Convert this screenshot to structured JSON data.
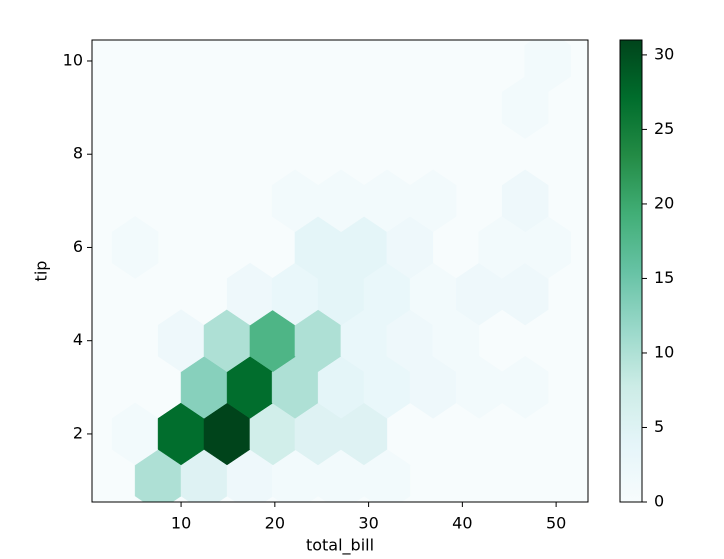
{
  "chart_data": {
    "type": "hexbin",
    "x_label": "total_bill",
    "y_label": "tip",
    "x": [
      7.55,
      12.45,
      17.36,
      22.16,
      27.07,
      31.97,
      5.1,
      10.0,
      14.9,
      19.8,
      24.6,
      29.5,
      12.45,
      17.36,
      22.16,
      27.07,
      31.97,
      36.88,
      41.79,
      46.7,
      10.0,
      14.9,
      19.8,
      24.6,
      29.5,
      34.4,
      39.3,
      17.36,
      22.16,
      27.07,
      31.97,
      36.88,
      41.79,
      46.7,
      5.1,
      24.6,
      29.5,
      34.4,
      44.2,
      49.1,
      22.16,
      27.07,
      31.97,
      36.88,
      46.7,
      46.7,
      49.1
    ],
    "y": [
      1,
      1,
      1,
      1,
      1,
      1,
      2,
      2,
      2,
      2,
      2,
      2,
      3,
      3,
      3,
      3,
      3,
      3,
      3,
      3,
      4,
      4,
      4,
      4,
      4,
      4,
      4,
      5,
      5,
      5,
      5,
      5,
      5,
      5,
      6,
      6,
      6,
      6,
      6,
      6,
      7,
      7,
      7,
      7,
      7,
      9,
      10
    ],
    "values": [
      10,
      5,
      2,
      1,
      1,
      1,
      1,
      27,
      31,
      7,
      5,
      5,
      13,
      27,
      10,
      4,
      3,
      2,
      1,
      1,
      2,
      10,
      18,
      10,
      3,
      2,
      1,
      2,
      3,
      4,
      3,
      1,
      2,
      2,
      1,
      4,
      4,
      2,
      1,
      1,
      1,
      1,
      1,
      1,
      2,
      1,
      1
    ],
    "xlim": [
      0.5,
      53.4
    ],
    "ylim": [
      0.54,
      10.45
    ],
    "xticks": [
      10,
      20,
      30,
      40,
      50
    ],
    "yticks": [
      2,
      4,
      6,
      8,
      10
    ],
    "colormap": "BuGn",
    "clim": [
      0,
      31
    ],
    "cbar_ticks": [
      0,
      5,
      10,
      15,
      20,
      25,
      30
    ]
  }
}
